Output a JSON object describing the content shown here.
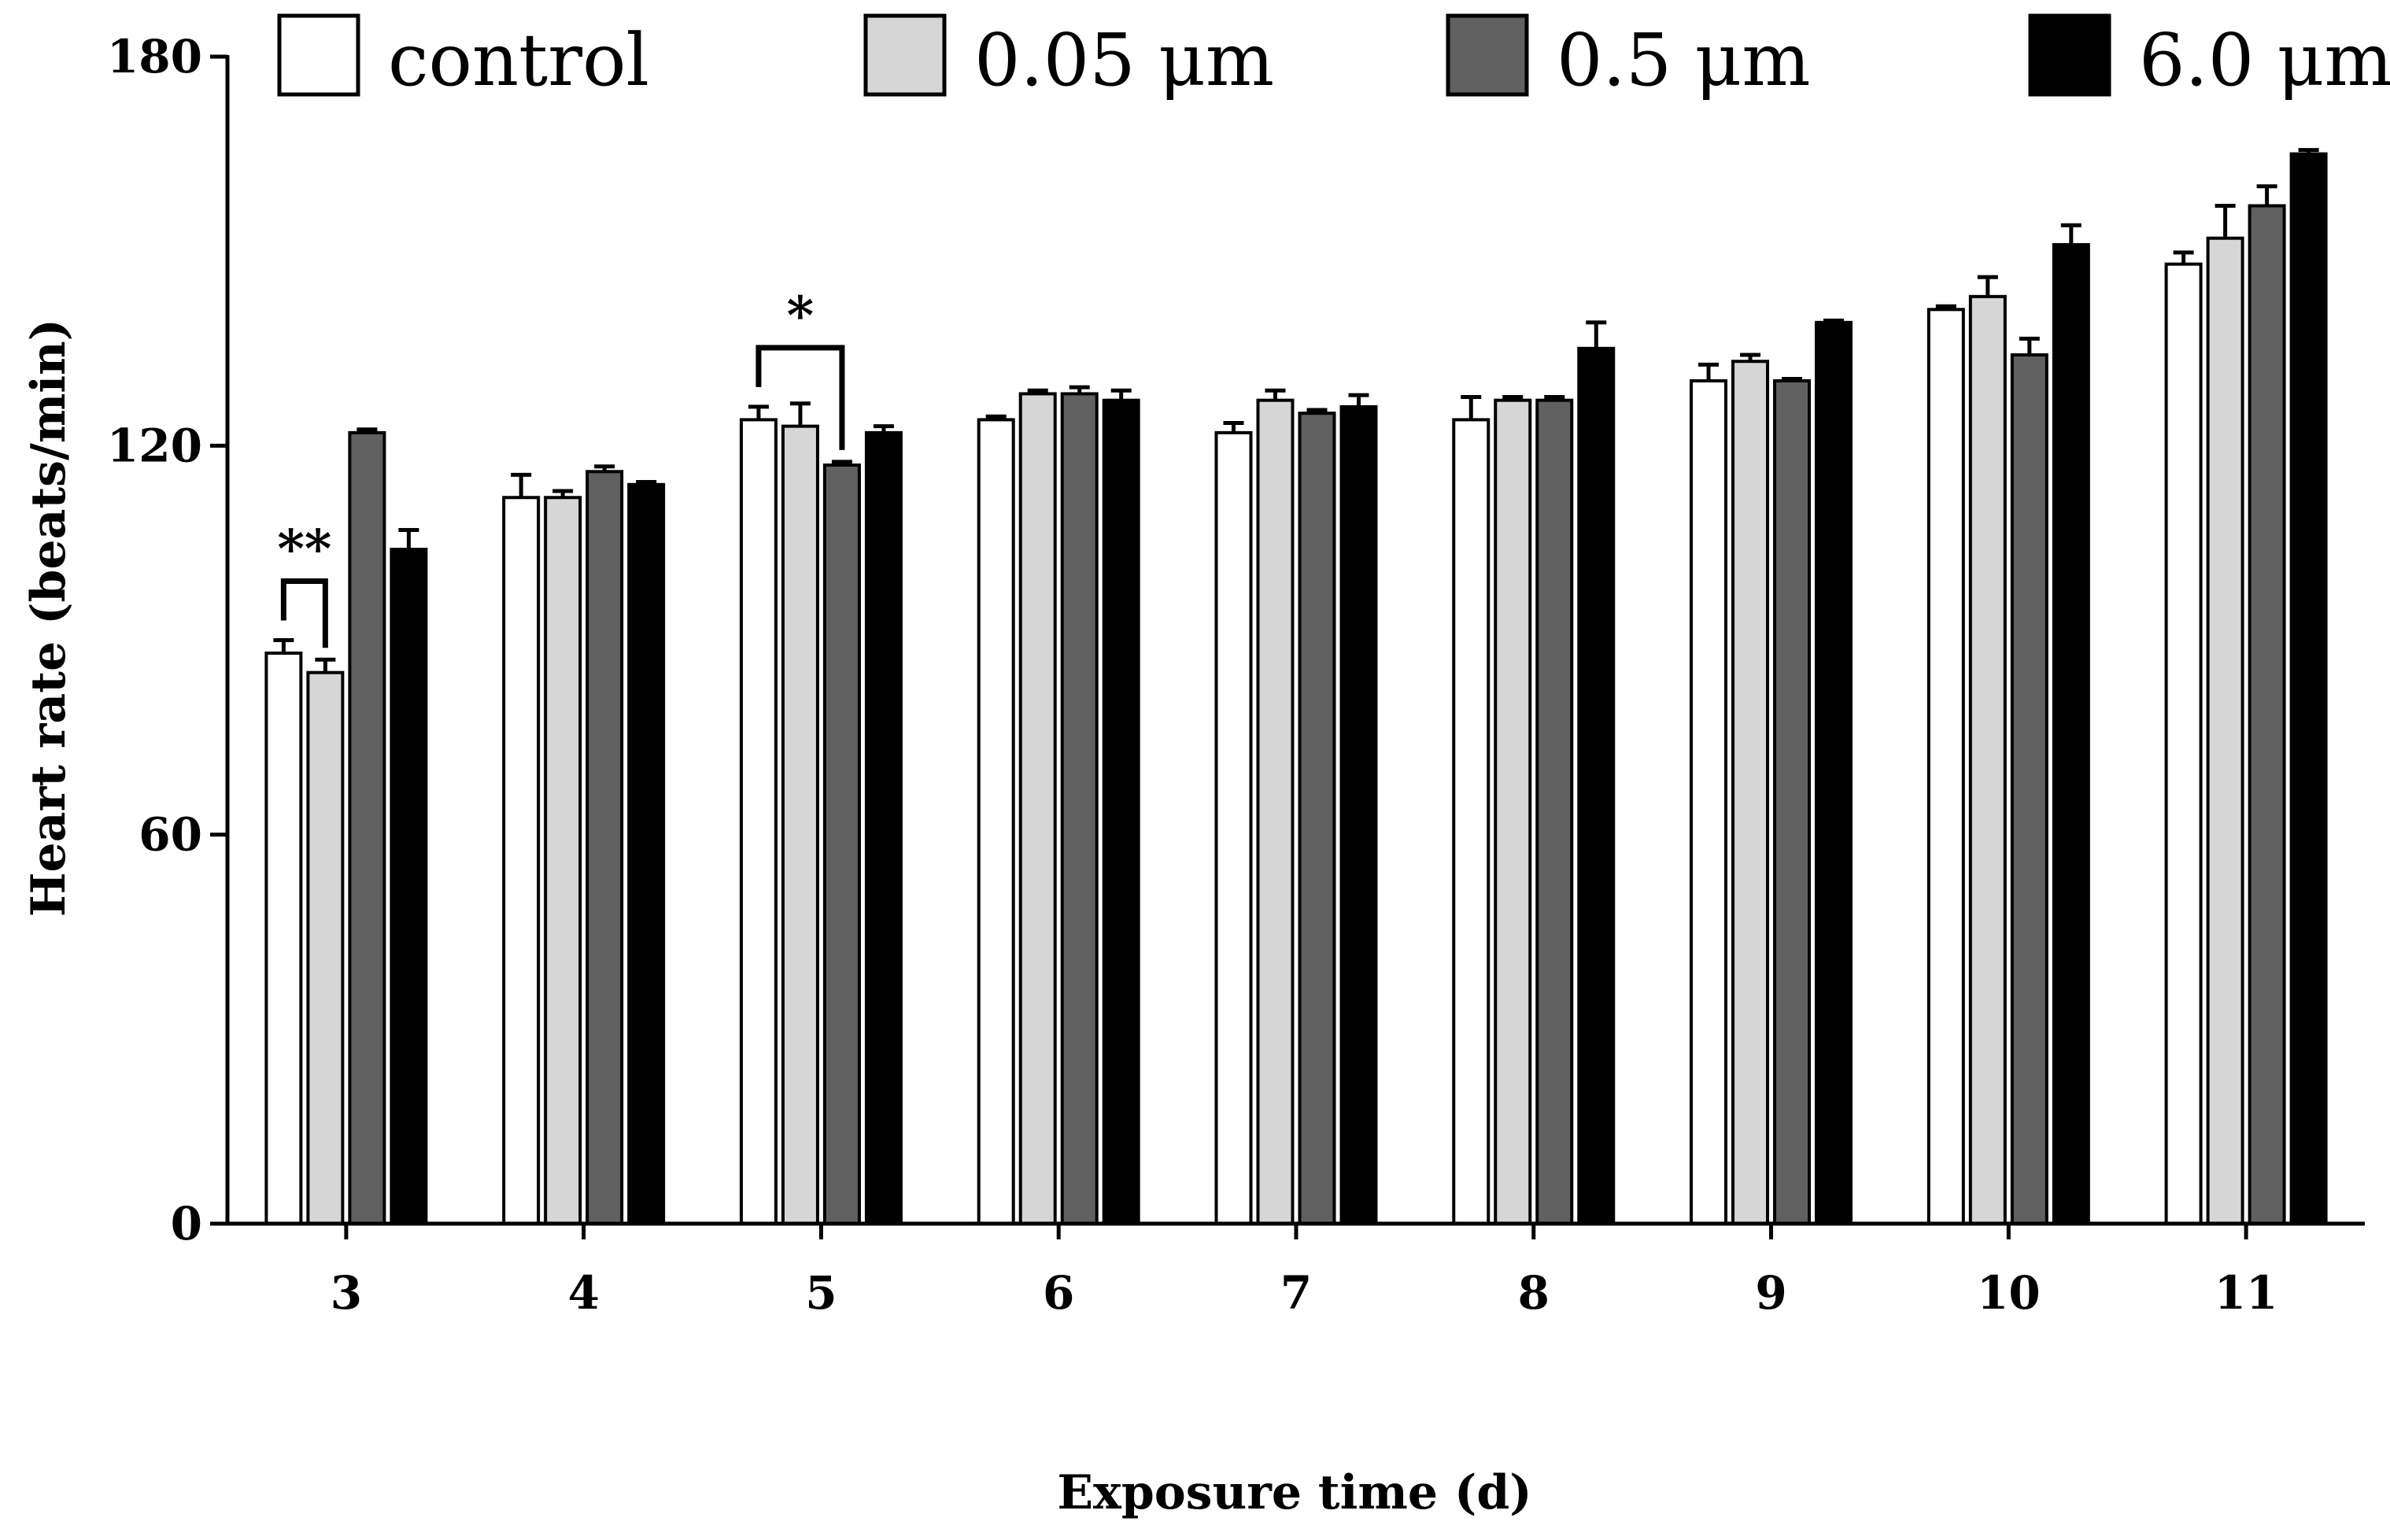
{
  "chart_data": {
    "type": "bar",
    "title": "",
    "xlabel": "Exposure time (d)",
    "ylabel": "Heart rate (beats/min)",
    "ylim": [
      0,
      180
    ],
    "yticks": [
      "0",
      "60",
      "120",
      "180"
    ],
    "categories": [
      "3",
      "4",
      "5",
      "6",
      "7",
      "8",
      "9",
      "10",
      "11"
    ],
    "series": [
      {
        "name": "control",
        "color": "#ffffff",
        "values": [
          88,
          112,
          124,
          124,
          122,
          124,
          130,
          141,
          148
        ],
        "errors": [
          2,
          3.5,
          2,
          0.5,
          1.5,
          3.5,
          2.5,
          0.5,
          1.8
        ]
      },
      {
        "name": "0.05 μm",
        "color": "#d6d6d6",
        "values": [
          85,
          112,
          123,
          128,
          127,
          127,
          133,
          143,
          152
        ],
        "errors": [
          2,
          1,
          3.5,
          0.5,
          1.5,
          0.5,
          1,
          3,
          5
        ]
      },
      {
        "name": "0.5 μm",
        "color": "#606060",
        "values": [
          122,
          116,
          117,
          128,
          125,
          127,
          130,
          134,
          157
        ],
        "errors": [
          0.5,
          0.8,
          0.5,
          1,
          0.5,
          0.5,
          0.3,
          2.5,
          3
        ]
      },
      {
        "name": "6.0 μm",
        "color": "#000000",
        "values": [
          104,
          114,
          122,
          127,
          126,
          135,
          139,
          151,
          165
        ],
        "errors": [
          3,
          0.4,
          1,
          1.5,
          1.8,
          4,
          0.3,
          3,
          0.6
        ]
      }
    ],
    "legend_position": "top",
    "significance": [
      {
        "category": "3",
        "label": "**",
        "from_series": 0,
        "to_series": 1
      },
      {
        "category": "5",
        "label": "*",
        "from_series": 0,
        "to_series": 2
      }
    ]
  }
}
